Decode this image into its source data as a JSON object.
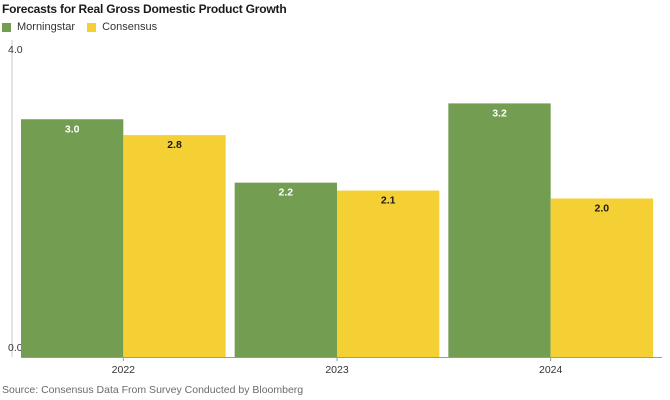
{
  "title": "Forecasts for Real Gross Domestic Product Growth",
  "source": "Source: Consensus Data From Survey Conducted by Bloomberg",
  "colors": {
    "morningstar": "#739d51",
    "consensus": "#f5d035",
    "label_on_green": "#ffffff",
    "label_on_yellow": "#1a1a1a"
  },
  "chart_data": {
    "type": "bar",
    "title": "Forecasts for Real Gross Domestic Product Growth",
    "categories": [
      "2022",
      "2023",
      "2024"
    ],
    "series": [
      {
        "name": "Morningstar",
        "values": [
          3.0,
          2.2,
          3.2
        ]
      },
      {
        "name": "Consensus",
        "values": [
          2.8,
          2.1,
          2.0
        ]
      }
    ],
    "ylim": [
      0,
      4
    ],
    "yticks": [
      "0.0",
      "4.0"
    ],
    "value_labels": {
      "Morningstar": [
        "3.0",
        "2.2",
        "3.2"
      ],
      "Consensus": [
        "2.8",
        "2.1",
        "2.0"
      ]
    },
    "legend": "top-left",
    "grid": false
  }
}
